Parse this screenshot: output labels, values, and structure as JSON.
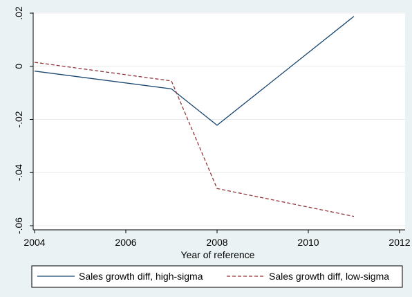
{
  "chart_data": {
    "type": "line",
    "title": "",
    "xlabel": "Year of reference",
    "ylabel": "",
    "xlim": [
      2004,
      2012
    ],
    "ylim": [
      -0.06,
      0.02
    ],
    "x_ticks": [
      {
        "value": 2004,
        "label": "2004"
      },
      {
        "value": 2006,
        "label": "2006"
      },
      {
        "value": 2008,
        "label": "2008"
      },
      {
        "value": 2010,
        "label": "2010"
      },
      {
        "value": 2012,
        "label": "2012"
      }
    ],
    "y_ticks": [
      {
        "value": 0.02,
        "label": ".02"
      },
      {
        "value": 0,
        "label": "0"
      },
      {
        "value": -0.02,
        "label": "-.02"
      },
      {
        "value": -0.04,
        "label": "-.04"
      },
      {
        "value": -0.06,
        "label": "-.06"
      }
    ],
    "grid": true,
    "legend_position": "bottom",
    "series": [
      {
        "name": "Sales growth diff, high-sigma",
        "color": "#1a476f",
        "style": "solid",
        "x": [
          2004,
          2007,
          2008,
          2011
        ],
        "y": [
          -0.0018,
          -0.0085,
          -0.0222,
          0.0188
        ]
      },
      {
        "name": "Sales growth diff, low-sigma",
        "color": "#90353b",
        "style": "dashed",
        "x": [
          2004,
          2007,
          2008,
          2011
        ],
        "y": [
          0.0015,
          -0.0055,
          -0.046,
          -0.0565
        ]
      }
    ]
  }
}
